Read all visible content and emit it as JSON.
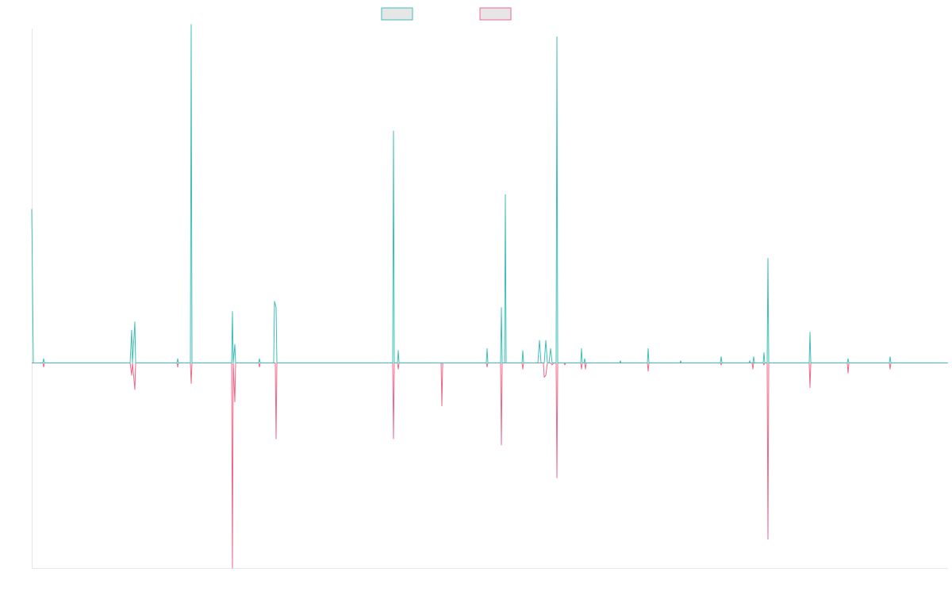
{
  "chart_data": {
    "type": "line",
    "title": "",
    "xlabel": "",
    "ylabel": "",
    "grid": false,
    "legend_placement": "top-center",
    "colors": {
      "series_a": "#3dbfb8",
      "series_b": "#f0668a",
      "legend_fill": "#e6e6e6",
      "axis": "#e6e6e6"
    },
    "x_range": [
      0,
      1155
    ],
    "ylim": [
      -100,
      163
    ],
    "series": [
      {
        "key": "series_a",
        "points": [
          [
            0,
            75
          ],
          [
            2,
            0
          ],
          [
            14,
            0
          ],
          [
            15,
            2
          ],
          [
            16,
            0
          ],
          [
            124,
            0
          ],
          [
            126,
            16
          ],
          [
            127,
            0
          ],
          [
            130,
            20
          ],
          [
            131,
            0
          ],
          [
            183,
            0
          ],
          [
            184,
            2
          ],
          [
            185,
            0
          ],
          [
            200,
            0
          ],
          [
            201,
            165
          ],
          [
            202,
            0
          ],
          [
            252,
            0
          ],
          [
            253,
            25
          ],
          [
            254,
            0
          ],
          [
            256,
            9
          ],
          [
            257,
            0
          ],
          [
            286,
            0
          ],
          [
            287,
            2
          ],
          [
            288,
            0
          ],
          [
            305,
            0
          ],
          [
            306,
            30
          ],
          [
            308,
            27
          ],
          [
            309,
            0
          ],
          [
            455,
            0
          ],
          [
            456,
            113
          ],
          [
            457,
            0
          ],
          [
            461,
            0
          ],
          [
            462,
            6
          ],
          [
            463,
            0
          ],
          [
            573,
            0
          ],
          [
            574,
            7
          ],
          [
            575,
            0
          ],
          [
            591,
            0
          ],
          [
            592,
            27
          ],
          [
            593,
            0
          ],
          [
            596,
            0
          ],
          [
            597,
            82
          ],
          [
            598,
            0
          ],
          [
            618,
            0
          ],
          [
            619,
            6
          ],
          [
            620,
            0
          ],
          [
            638,
            0
          ],
          [
            640,
            11
          ],
          [
            642,
            0
          ],
          [
            646,
            0
          ],
          [
            648,
            11
          ],
          [
            650,
            0
          ],
          [
            652,
            0
          ],
          [
            654,
            7
          ],
          [
            656,
            0
          ],
          [
            661,
            0
          ],
          [
            662,
            159
          ],
          [
            663,
            0
          ],
          [
            692,
            0
          ],
          [
            693,
            7
          ],
          [
            694,
            0
          ],
          [
            696,
            0
          ],
          [
            697,
            2
          ],
          [
            698,
            0
          ],
          [
            741,
            0
          ],
          [
            742,
            1
          ],
          [
            743,
            0
          ],
          [
            776,
            0
          ],
          [
            777,
            7
          ],
          [
            778,
            0
          ],
          [
            817,
            0
          ],
          [
            818,
            1
          ],
          [
            819,
            0
          ],
          [
            868,
            0
          ],
          [
            869,
            3
          ],
          [
            870,
            0
          ],
          [
            904,
            0
          ],
          [
            905,
            1
          ],
          [
            906,
            0
          ],
          [
            909,
            0
          ],
          [
            910,
            3
          ],
          [
            911,
            0
          ],
          [
            922,
            0
          ],
          [
            923,
            5
          ],
          [
            924,
            0
          ],
          [
            927,
            0
          ],
          [
            928,
            51
          ],
          [
            929,
            0
          ],
          [
            980,
            0
          ],
          [
            981,
            15
          ],
          [
            982,
            0
          ],
          [
            1028,
            0
          ],
          [
            1029,
            2
          ],
          [
            1030,
            0
          ],
          [
            1081,
            0
          ],
          [
            1082,
            3
          ],
          [
            1083,
            0
          ],
          [
            1155,
            0
          ]
        ]
      },
      {
        "key": "series_b",
        "points": [
          [
            0,
            0
          ],
          [
            14,
            0
          ],
          [
            15,
            -2
          ],
          [
            16,
            0
          ],
          [
            124,
            0
          ],
          [
            126,
            -6
          ],
          [
            127,
            0
          ],
          [
            130,
            -13
          ],
          [
            131,
            0
          ],
          [
            183,
            0
          ],
          [
            184,
            -2
          ],
          [
            185,
            0
          ],
          [
            200,
            0
          ],
          [
            201,
            -10
          ],
          [
            202,
            0
          ],
          [
            252,
            0
          ],
          [
            253,
            -100
          ],
          [
            254,
            0
          ],
          [
            256,
            -19
          ],
          [
            257,
            0
          ],
          [
            286,
            0
          ],
          [
            287,
            -2
          ],
          [
            288,
            0
          ],
          [
            307,
            0
          ],
          [
            308,
            -37
          ],
          [
            309,
            0
          ],
          [
            455,
            0
          ],
          [
            456,
            -37
          ],
          [
            457,
            0
          ],
          [
            461,
            0
          ],
          [
            462,
            -3
          ],
          [
            463,
            0
          ],
          [
            516,
            0
          ],
          [
            517,
            -21
          ],
          [
            518,
            0
          ],
          [
            573,
            0
          ],
          [
            574,
            -2
          ],
          [
            575,
            0
          ],
          [
            591,
            0
          ],
          [
            592,
            -40
          ],
          [
            593,
            0
          ],
          [
            618,
            0
          ],
          [
            619,
            -3
          ],
          [
            620,
            0
          ],
          [
            645,
            0
          ],
          [
            646,
            -7
          ],
          [
            648,
            -6
          ],
          [
            650,
            0
          ],
          [
            654,
            0
          ],
          [
            656,
            -1
          ],
          [
            658,
            0
          ],
          [
            661,
            0
          ],
          [
            662,
            -56
          ],
          [
            663,
            0
          ],
          [
            671,
            0
          ],
          [
            672,
            -1
          ],
          [
            673,
            0
          ],
          [
            692,
            0
          ],
          [
            693,
            -3
          ],
          [
            694,
            0
          ],
          [
            697,
            0
          ],
          [
            698,
            -3
          ],
          [
            699,
            0
          ],
          [
            776,
            0
          ],
          [
            777,
            -4
          ],
          [
            778,
            0
          ],
          [
            868,
            0
          ],
          [
            869,
            -1
          ],
          [
            870,
            0
          ],
          [
            905,
            0
          ],
          [
            908,
            0
          ],
          [
            909,
            -3
          ],
          [
            910,
            0
          ],
          [
            922,
            0
          ],
          [
            923,
            -1
          ],
          [
            924,
            0
          ],
          [
            927,
            0
          ],
          [
            928,
            -86
          ],
          [
            929,
            0
          ],
          [
            980,
            0
          ],
          [
            981,
            -12
          ],
          [
            982,
            0
          ],
          [
            1028,
            0
          ],
          [
            1029,
            -5
          ],
          [
            1030,
            0
          ],
          [
            1081,
            0
          ],
          [
            1082,
            -3
          ],
          [
            1083,
            0
          ],
          [
            1155,
            0
          ]
        ]
      }
    ]
  }
}
